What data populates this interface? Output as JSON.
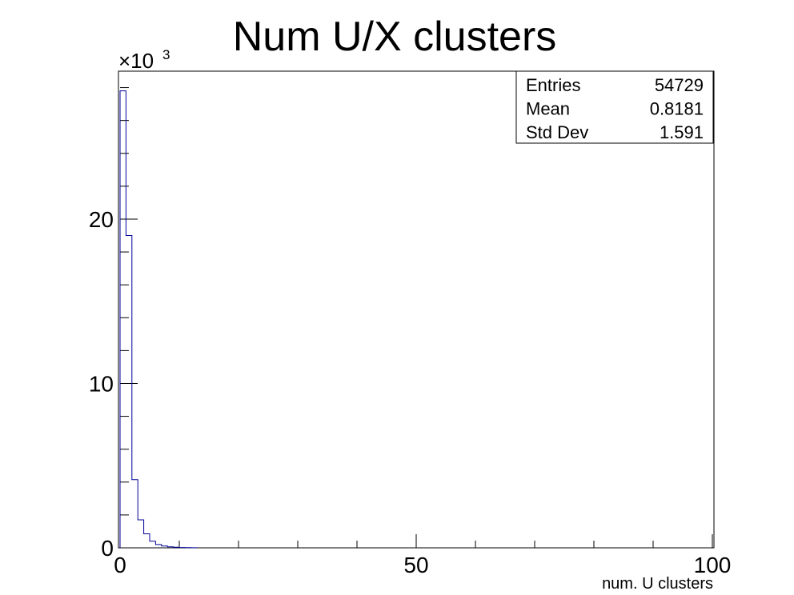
{
  "chart_data": {
    "type": "histogram",
    "title": "Num U/X clusters",
    "xlabel": "num. U clusters",
    "ylabel": "",
    "y_multiplier_label": "×10",
    "y_multiplier_exponent": "3",
    "xlim": [
      0,
      100
    ],
    "ylim": [
      0,
      29000
    ],
    "bin_width": 1,
    "x_tick_labels": [
      "0",
      "50",
      "100"
    ],
    "y_tick_labels": [
      "0",
      "10",
      "20"
    ],
    "bins": [
      {
        "x0": 0,
        "x1": 1,
        "count": 27800
      },
      {
        "x0": 1,
        "x1": 2,
        "count": 19000
      },
      {
        "x0": 2,
        "x1": 3,
        "count": 4150
      },
      {
        "x0": 3,
        "x1": 4,
        "count": 1700
      },
      {
        "x0": 4,
        "x1": 5,
        "count": 850
      },
      {
        "x0": 5,
        "x1": 6,
        "count": 400
      },
      {
        "x0": 6,
        "x1": 7,
        "count": 200
      },
      {
        "x0": 7,
        "x1": 8,
        "count": 110
      },
      {
        "x0": 8,
        "x1": 9,
        "count": 60
      },
      {
        "x0": 9,
        "x1": 10,
        "count": 35
      },
      {
        "x0": 10,
        "x1": 11,
        "count": 20
      },
      {
        "x0": 11,
        "x1": 12,
        "count": 12
      },
      {
        "x0": 12,
        "x1": 13,
        "count": 6
      }
    ],
    "line_color": "#000099",
    "stats": {
      "rows": [
        {
          "label": "Entries",
          "value": "54729"
        },
        {
          "label": "Mean",
          "value": "0.8181"
        },
        {
          "label": "Std Dev",
          "value": "1.591"
        }
      ]
    },
    "grid": false,
    "legend": "top-right"
  }
}
